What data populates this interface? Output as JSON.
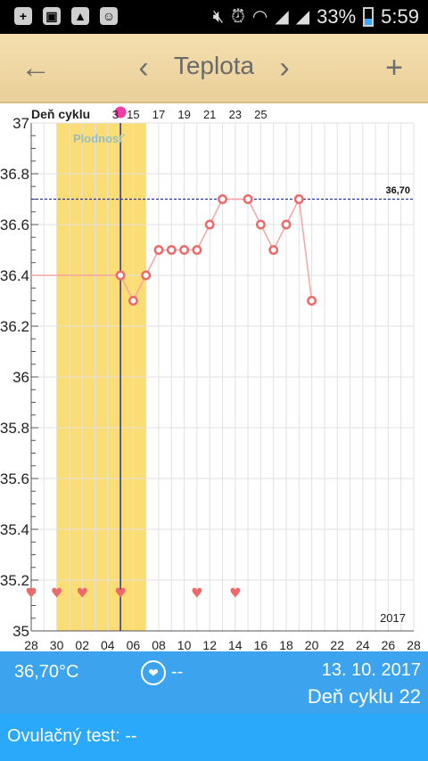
{
  "status_bar": {
    "battery": "33%",
    "time": "5:59",
    "icons": [
      "add-icon",
      "photo-icon",
      "image-icon",
      "android-icon",
      "mute-icon",
      "alarm-icon",
      "wifi-icon",
      "signal-icon",
      "signal-icon"
    ]
  },
  "header": {
    "title": "Teplota",
    "back": "←",
    "prev": "‹",
    "next": "›",
    "add": "+"
  },
  "chart_labels": {
    "cycle_label": "Deň cyklu",
    "cycle_numbers": [
      "3",
      "15",
      "17",
      "19",
      "21",
      "23",
      "25"
    ],
    "fertile": "Plodnosť",
    "year": "2017",
    "ref_line_label": "36,70"
  },
  "chart_data": {
    "type": "line",
    "ylim": [
      35,
      37
    ],
    "yticks": [
      35,
      35.2,
      35.4,
      35.6,
      35.8,
      36,
      36.2,
      36.4,
      36.6,
      36.8,
      37
    ],
    "ytick_labels": [
      "35",
      "35.2",
      "35.4",
      "35.6",
      "35.8",
      "36",
      "36.2",
      "36.4",
      "36.6",
      "36.8",
      "37"
    ],
    "xlim": [
      28,
      58
    ],
    "xtick_values": [
      28,
      30,
      32,
      34,
      36,
      38,
      40,
      42,
      44,
      46,
      48,
      50,
      52,
      54,
      56,
      58
    ],
    "xtick_labels": [
      "28",
      "30",
      "02",
      "04",
      "06",
      "08",
      "10",
      "12",
      "14",
      "16",
      "18",
      "20",
      "22",
      "24",
      "26",
      "28"
    ],
    "series": [
      {
        "x": [
          28,
          35,
          36,
          37,
          38,
          39,
          40,
          41,
          42,
          43,
          45,
          46,
          47,
          48,
          49,
          50
        ],
        "y": [
          36.4,
          36.4,
          36.3,
          36.4,
          36.5,
          36.5,
          36.5,
          36.5,
          36.6,
          36.7,
          36.7,
          36.6,
          36.5,
          36.6,
          36.7,
          36.3
        ]
      }
    ],
    "reference_line": 36.7,
    "current_day_x": 35,
    "fertile_range": [
      30,
      37
    ],
    "hearts_x": [
      28,
      30,
      32,
      35,
      41,
      44
    ],
    "heart_y": 35.15,
    "colors": {
      "line": "#f5a3a3",
      "marker": "#ee6a6a",
      "fertile": "#fbdd75",
      "ref": "#2233aa",
      "vline": "#2233aa",
      "grid": "#e1e1e1"
    }
  },
  "footer": {
    "temperature": "36,70°C",
    "intercourse": "--",
    "date": "13. 10. 2017",
    "cycle_day": "Deň cyklu 22",
    "ovulation": "Ovulačný test: --"
  }
}
